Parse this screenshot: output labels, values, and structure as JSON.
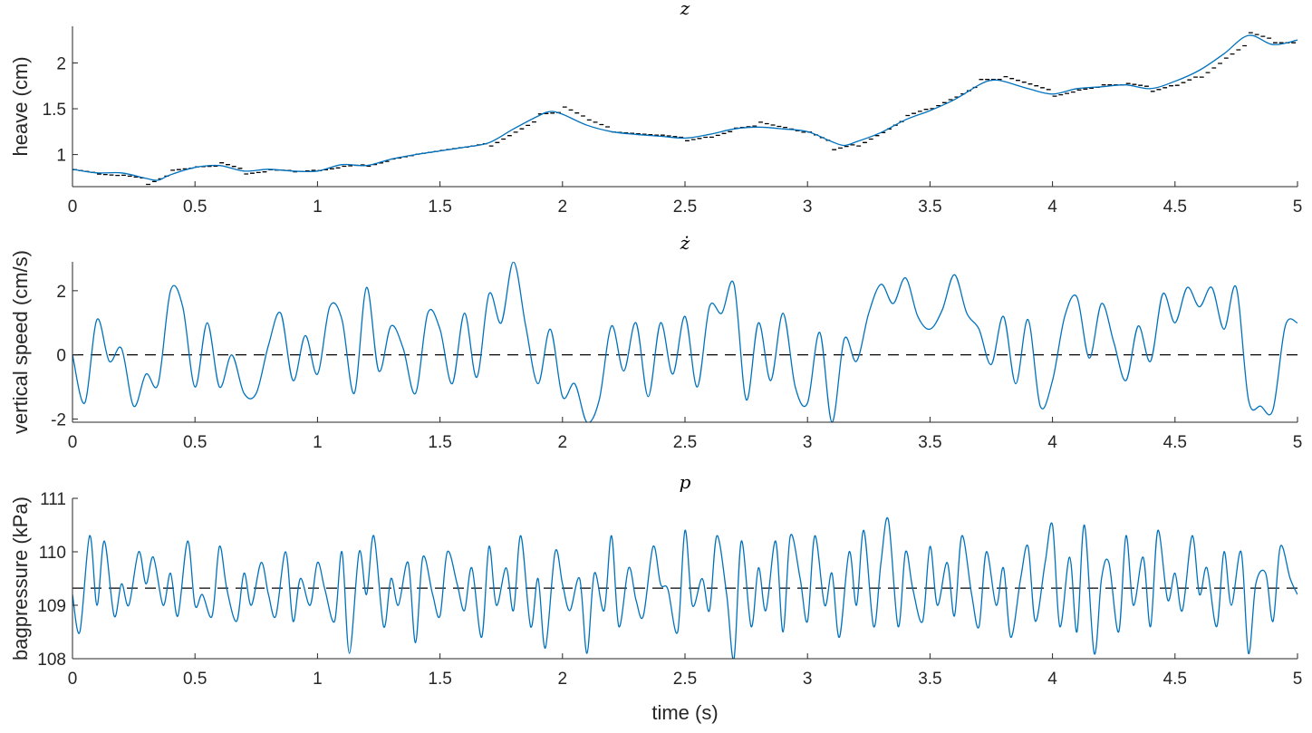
{
  "chart_data": [
    {
      "type": "line",
      "title": "z",
      "xlabel": "",
      "ylabel": "heave (cm)",
      "xlim": [
        0,
        5
      ],
      "ylim": [
        0.65,
        2.4
      ],
      "xticks": [
        0,
        0.5,
        1,
        1.5,
        2,
        2.5,
        3,
        3.5,
        4,
        4.5,
        5
      ],
      "xtick_labels": [
        "0",
        "0.5",
        "1",
        "1.5",
        "2",
        "2.5",
        "3",
        "3.5",
        "4",
        "4.5",
        "5"
      ],
      "yticks": [
        1,
        1.5,
        2
      ],
      "ytick_labels": [
        "1",
        "1.5",
        "2"
      ],
      "grid": false,
      "series": [
        {
          "style": "dashed-step",
          "color": "#000000",
          "x": [
            0.0,
            0.1,
            0.2,
            0.3,
            0.4,
            0.5,
            0.6,
            0.7,
            0.8,
            0.9,
            1.0,
            1.1,
            1.2,
            1.3,
            1.4,
            1.5,
            1.6,
            1.7,
            1.8,
            1.9,
            2.0,
            2.1,
            2.2,
            2.3,
            2.4,
            2.5,
            2.6,
            2.7,
            2.8,
            2.9,
            3.0,
            3.1,
            3.2,
            3.3,
            3.4,
            3.5,
            3.6,
            3.7,
            3.8,
            3.9,
            4.0,
            4.1,
            4.2,
            4.3,
            4.4,
            4.5,
            4.6,
            4.7,
            4.8,
            4.9,
            5.0
          ],
          "y": [
            0.82,
            0.78,
            0.76,
            0.72,
            0.84,
            0.87,
            0.88,
            0.8,
            0.83,
            0.82,
            0.84,
            0.88,
            0.9,
            0.97,
            1.02,
            1.06,
            1.1,
            1.15,
            1.3,
            1.45,
            1.47,
            1.34,
            1.24,
            1.22,
            1.2,
            1.17,
            1.22,
            1.3,
            1.33,
            1.27,
            1.2,
            1.08,
            1.15,
            1.3,
            1.46,
            1.55,
            1.68,
            1.82,
            1.82,
            1.74,
            1.66,
            1.72,
            1.76,
            1.76,
            1.72,
            1.8,
            1.92,
            2.12,
            2.3,
            2.22,
            2.22
          ]
        },
        {
          "style": "solid",
          "color": "#0072BD",
          "x": [
            0.0,
            0.1,
            0.2,
            0.3,
            0.35,
            0.4,
            0.5,
            0.6,
            0.7,
            0.8,
            0.9,
            1.0,
            1.1,
            1.2,
            1.3,
            1.4,
            1.5,
            1.6,
            1.7,
            1.8,
            1.9,
            1.95,
            2.0,
            2.1,
            2.2,
            2.3,
            2.4,
            2.5,
            2.6,
            2.7,
            2.8,
            2.9,
            3.0,
            3.1,
            3.15,
            3.2,
            3.3,
            3.4,
            3.5,
            3.6,
            3.7,
            3.75,
            3.8,
            3.9,
            4.0,
            4.1,
            4.2,
            4.3,
            4.4,
            4.5,
            4.6,
            4.7,
            4.8,
            4.9,
            5.0
          ],
          "y": [
            0.84,
            0.8,
            0.8,
            0.74,
            0.72,
            0.78,
            0.86,
            0.88,
            0.82,
            0.84,
            0.82,
            0.82,
            0.89,
            0.88,
            0.95,
            1.0,
            1.04,
            1.08,
            1.13,
            1.28,
            1.42,
            1.47,
            1.44,
            1.32,
            1.25,
            1.22,
            1.2,
            1.18,
            1.22,
            1.28,
            1.3,
            1.28,
            1.25,
            1.14,
            1.1,
            1.14,
            1.24,
            1.38,
            1.48,
            1.6,
            1.76,
            1.81,
            1.8,
            1.72,
            1.66,
            1.72,
            1.74,
            1.76,
            1.72,
            1.8,
            1.92,
            2.1,
            2.3,
            2.2,
            2.25
          ]
        }
      ]
    },
    {
      "type": "line",
      "title": "ż",
      "xlabel": "",
      "ylabel": "vertical speed (cm/s)",
      "xlim": [
        0,
        5
      ],
      "ylim": [
        -2.1,
        2.9
      ],
      "xticks": [
        0,
        0.5,
        1,
        1.5,
        2,
        2.5,
        3,
        3.5,
        4,
        4.5,
        5
      ],
      "xtick_labels": [
        "0",
        "0.5",
        "1",
        "1.5",
        "2",
        "2.5",
        "3",
        "3.5",
        "4",
        "4.5",
        "5"
      ],
      "yticks": [
        -2,
        0,
        2
      ],
      "ytick_labels": [
        "-2",
        "0",
        "2"
      ],
      "grid": false,
      "reference_line": {
        "y": 0,
        "style": "dashed",
        "color": "#000000"
      },
      "series": [
        {
          "style": "solid",
          "color": "#0072BD",
          "x": [
            0.0,
            0.05,
            0.1,
            0.15,
            0.2,
            0.25,
            0.3,
            0.35,
            0.4,
            0.45,
            0.5,
            0.55,
            0.6,
            0.65,
            0.7,
            0.75,
            0.8,
            0.85,
            0.9,
            0.95,
            1.0,
            1.05,
            1.1,
            1.15,
            1.2,
            1.25,
            1.3,
            1.35,
            1.4,
            1.45,
            1.5,
            1.55,
            1.6,
            1.65,
            1.7,
            1.75,
            1.8,
            1.85,
            1.9,
            1.95,
            2.0,
            2.05,
            2.1,
            2.15,
            2.2,
            2.25,
            2.3,
            2.35,
            2.4,
            2.45,
            2.5,
            2.55,
            2.6,
            2.65,
            2.7,
            2.75,
            2.8,
            2.85,
            2.9,
            2.95,
            3.0,
            3.05,
            3.1,
            3.15,
            3.2,
            3.25,
            3.3,
            3.35,
            3.4,
            3.45,
            3.5,
            3.55,
            3.6,
            3.65,
            3.7,
            3.75,
            3.8,
            3.85,
            3.9,
            3.95,
            4.0,
            4.05,
            4.1,
            4.15,
            4.2,
            4.25,
            4.3,
            4.35,
            4.4,
            4.45,
            4.5,
            4.55,
            4.6,
            4.65,
            4.7,
            4.75,
            4.8,
            4.85,
            4.9,
            4.95,
            5.0
          ],
          "y": [
            0.0,
            -1.5,
            1.1,
            -0.2,
            0.2,
            -1.6,
            -0.6,
            -0.9,
            2.0,
            1.5,
            -1.0,
            1.0,
            -1.0,
            0.0,
            -1.2,
            -1.2,
            0.3,
            1.3,
            -0.8,
            0.6,
            -0.6,
            1.5,
            1.1,
            -1.2,
            2.1,
            -0.5,
            0.9,
            0.2,
            -1.2,
            1.3,
            0.8,
            -0.9,
            1.3,
            -0.7,
            1.9,
            1.0,
            2.9,
            0.9,
            -0.9,
            0.8,
            -1.3,
            -0.9,
            -2.1,
            -1.4,
            0.9,
            -0.5,
            1.0,
            -1.3,
            1.0,
            -0.6,
            1.2,
            -1.0,
            1.5,
            1.3,
            2.2,
            -1.4,
            1.0,
            -0.8,
            1.3,
            -1.0,
            -1.5,
            0.7,
            -2.1,
            0.5,
            -0.2,
            1.3,
            2.2,
            1.6,
            2.4,
            1.2,
            0.8,
            1.4,
            2.5,
            1.3,
            0.8,
            -0.3,
            1.2,
            -0.9,
            1.1,
            -1.6,
            -0.8,
            1.2,
            1.8,
            -0.1,
            1.6,
            0.4,
            -0.8,
            0.9,
            -0.2,
            1.9,
            1.0,
            2.1,
            1.5,
            2.1,
            0.8,
            2.1,
            -1.4,
            -1.6,
            -1.7,
            0.9,
            1.0
          ]
        }
      ]
    },
    {
      "type": "line",
      "title": "p",
      "xlabel": "time (s)",
      "ylabel": "bagpressure (kPa)",
      "xlim": [
        0,
        5
      ],
      "ylim": [
        108,
        111
      ],
      "xticks": [
        0,
        0.5,
        1,
        1.5,
        2,
        2.5,
        3,
        3.5,
        4,
        4.5,
        5
      ],
      "xtick_labels": [
        "0",
        "0.5",
        "1",
        "1.5",
        "2",
        "2.5",
        "3",
        "3.5",
        "4",
        "4.5",
        "5"
      ],
      "yticks": [
        108,
        109,
        110,
        111
      ],
      "ytick_labels": [
        "108",
        "109",
        "110",
        "111"
      ],
      "grid": false,
      "reference_line": {
        "y": 109.32,
        "style": "dashed",
        "color": "#000000"
      },
      "series": [
        {
          "style": "solid",
          "color": "#0072BD",
          "x": [
            0.0,
            0.03,
            0.07,
            0.1,
            0.13,
            0.17,
            0.2,
            0.23,
            0.27,
            0.3,
            0.33,
            0.37,
            0.4,
            0.43,
            0.47,
            0.5,
            0.53,
            0.57,
            0.6,
            0.63,
            0.67,
            0.7,
            0.73,
            0.77,
            0.8,
            0.83,
            0.87,
            0.9,
            0.93,
            0.97,
            1.0,
            1.03,
            1.07,
            1.1,
            1.13,
            1.17,
            1.2,
            1.23,
            1.27,
            1.3,
            1.33,
            1.37,
            1.4,
            1.43,
            1.47,
            1.5,
            1.53,
            1.57,
            1.6,
            1.63,
            1.67,
            1.7,
            1.73,
            1.77,
            1.8,
            1.83,
            1.87,
            1.9,
            1.93,
            1.97,
            2.0,
            2.03,
            2.07,
            2.1,
            2.13,
            2.17,
            2.2,
            2.23,
            2.27,
            2.3,
            2.33,
            2.37,
            2.4,
            2.43,
            2.47,
            2.5,
            2.53,
            2.57,
            2.6,
            2.63,
            2.67,
            2.7,
            2.73,
            2.77,
            2.8,
            2.83,
            2.87,
            2.9,
            2.93,
            2.97,
            3.0,
            3.03,
            3.07,
            3.1,
            3.13,
            3.17,
            3.2,
            3.23,
            3.27,
            3.3,
            3.33,
            3.37,
            3.4,
            3.43,
            3.47,
            3.5,
            3.53,
            3.57,
            3.6,
            3.63,
            3.67,
            3.7,
            3.73,
            3.77,
            3.8,
            3.83,
            3.87,
            3.9,
            3.93,
            3.97,
            4.0,
            4.03,
            4.07,
            4.1,
            4.13,
            4.17,
            4.2,
            4.23,
            4.27,
            4.3,
            4.33,
            4.37,
            4.4,
            4.43,
            4.47,
            4.5,
            4.53,
            4.57,
            4.6,
            4.63,
            4.67,
            4.7,
            4.73,
            4.77,
            4.8,
            4.83,
            4.87,
            4.9,
            4.93,
            4.97,
            5.0
          ],
          "y": [
            109.2,
            108.5,
            110.3,
            109.0,
            110.2,
            108.8,
            109.4,
            109.0,
            110.0,
            109.4,
            109.9,
            109.0,
            109.6,
            108.8,
            110.2,
            109.0,
            109.2,
            108.8,
            110.1,
            109.3,
            108.7,
            109.6,
            109.0,
            109.8,
            109.2,
            108.8,
            110.0,
            108.7,
            109.5,
            109.0,
            109.8,
            109.3,
            108.7,
            110.0,
            108.1,
            110.0,
            109.2,
            110.3,
            108.6,
            109.5,
            109.0,
            109.8,
            108.3,
            109.9,
            109.2,
            108.8,
            110.0,
            109.4,
            108.9,
            109.7,
            108.4,
            110.1,
            109.0,
            109.7,
            108.9,
            110.3,
            108.6,
            109.5,
            108.2,
            110.0,
            109.4,
            108.9,
            109.5,
            108.1,
            109.6,
            108.9,
            110.3,
            108.6,
            109.7,
            109.1,
            108.8,
            110.1,
            109.4,
            109.3,
            108.5,
            110.4,
            109.0,
            109.5,
            108.9,
            110.3,
            109.2,
            108.0,
            110.2,
            108.6,
            109.7,
            108.9,
            110.2,
            108.5,
            110.3,
            109.5,
            108.7,
            110.3,
            109.0,
            109.6,
            108.4,
            110.0,
            109.0,
            110.4,
            108.6,
            109.8,
            110.6,
            108.6,
            110.0,
            109.3,
            108.7,
            110.1,
            109.0,
            109.8,
            108.8,
            110.3,
            109.2,
            108.6,
            110.0,
            109.0,
            109.7,
            108.4,
            109.5,
            110.1,
            108.7,
            109.8,
            110.5,
            108.6,
            109.9,
            108.5,
            110.5,
            108.1,
            109.5,
            109.8,
            108.5,
            110.3,
            109.0,
            109.9,
            108.6,
            110.4,
            109.1,
            109.6,
            108.9,
            110.3,
            109.2,
            109.7,
            108.6,
            110.0,
            109.0,
            110.0,
            108.1,
            109.4,
            109.6,
            108.7,
            110.1,
            109.5,
            109.2
          ]
        }
      ]
    }
  ]
}
